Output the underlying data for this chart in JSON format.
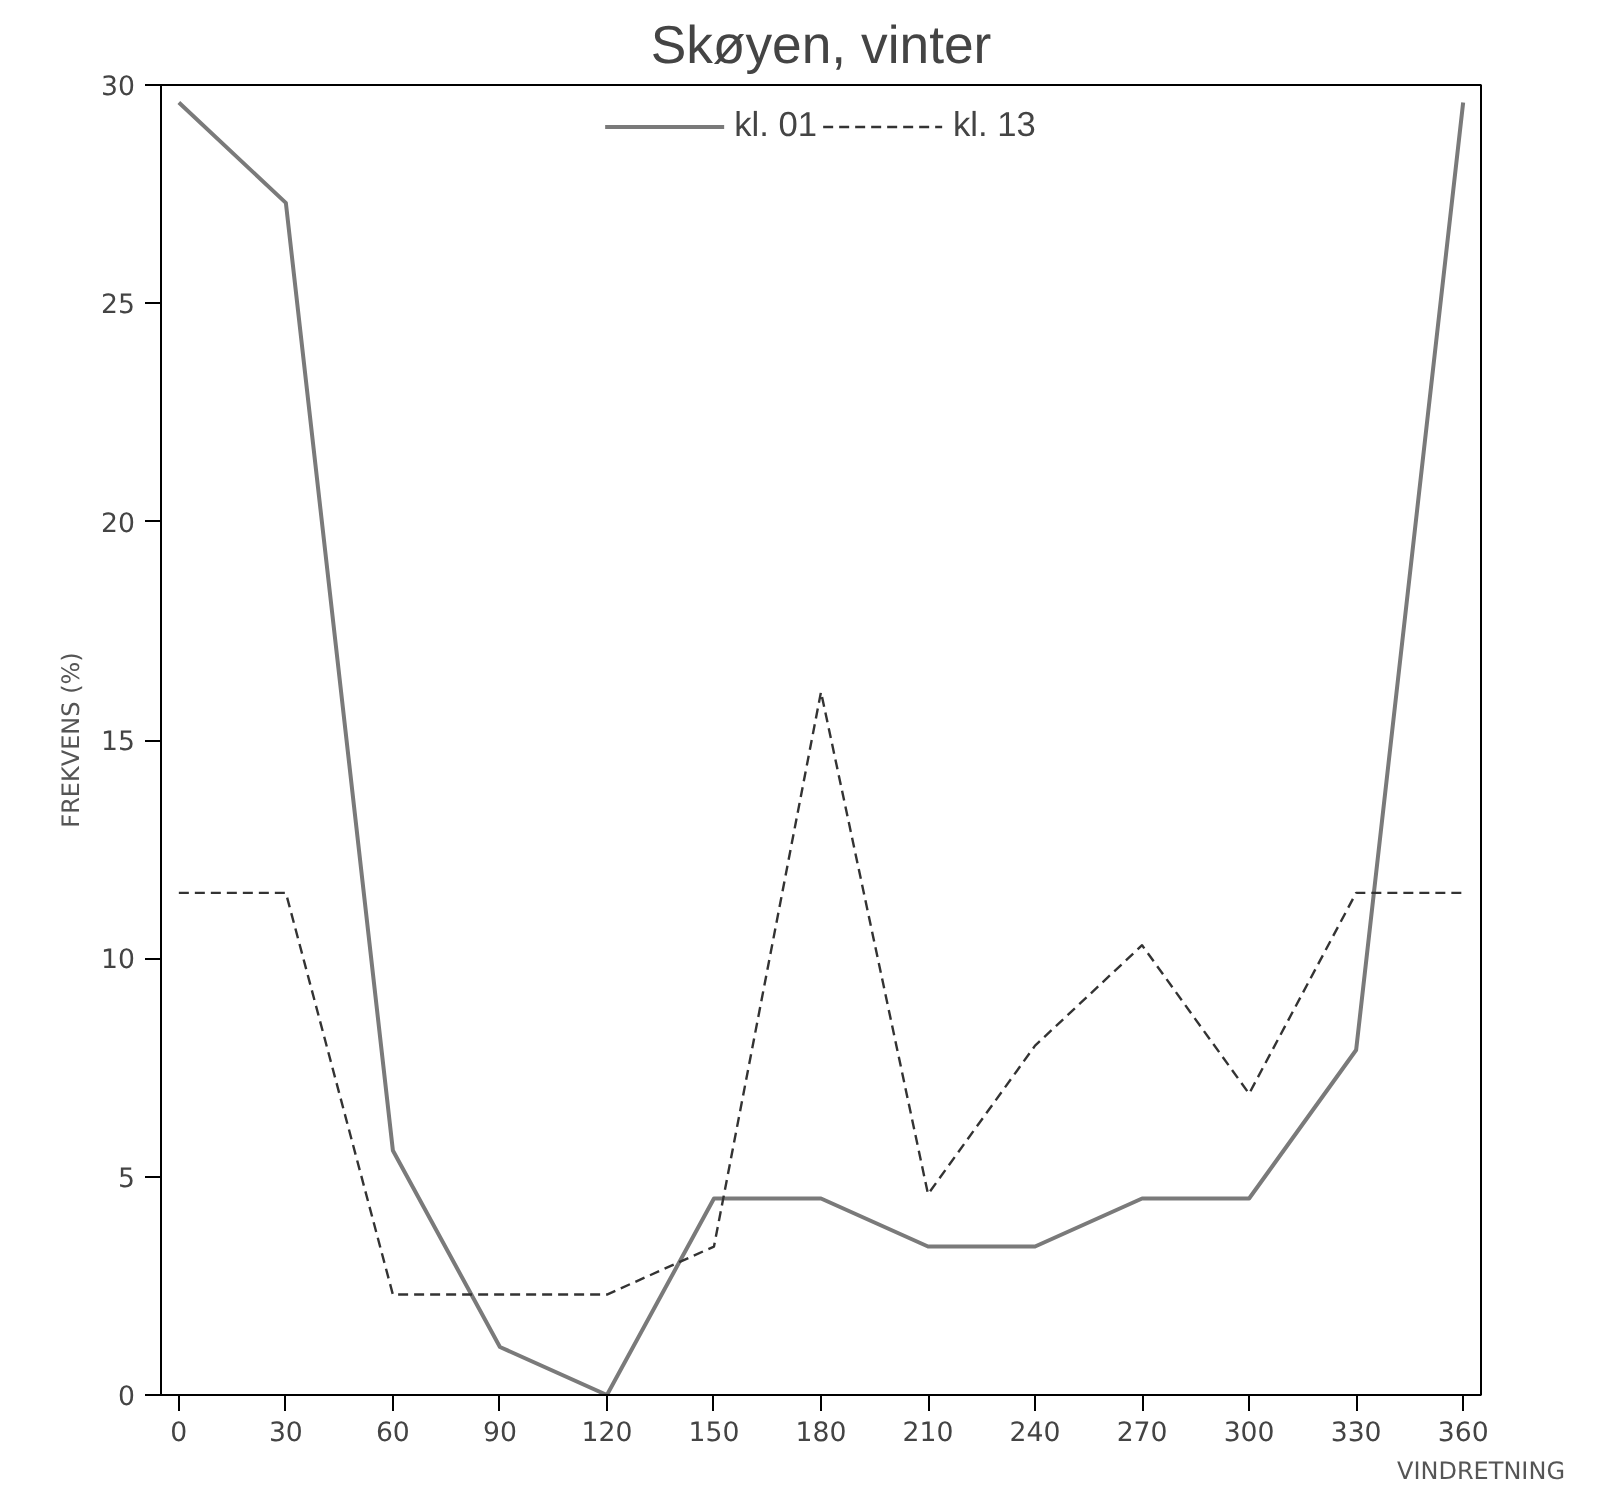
{
  "chart_data": {
    "type": "line",
    "title": "Skøyen, vinter",
    "xlabel": "VINDRETNING",
    "ylabel": "FREKVENS (%)",
    "x": [
      0,
      30,
      60,
      90,
      120,
      150,
      180,
      210,
      240,
      270,
      300,
      330,
      360
    ],
    "series": [
      {
        "name": "kl. 01",
        "color": "#7a7a7a",
        "line_style": "solid",
        "values": [
          29.6,
          27.3,
          5.6,
          1.1,
          0,
          4.5,
          4.5,
          3.4,
          3.4,
          4.5,
          4.5,
          7.9,
          29.6
        ]
      },
      {
        "name": "kl. 13",
        "color": "#333333",
        "line_style": "dashed",
        "values": [
          11.5,
          11.5,
          2.3,
          2.3,
          2.3,
          3.4,
          16.1,
          4.6,
          8.0,
          10.3,
          6.9,
          11.5,
          11.5
        ]
      }
    ],
    "xlim": [
      -5,
      365
    ],
    "ylim": [
      0,
      30
    ],
    "xticks": [
      0,
      30,
      60,
      90,
      120,
      150,
      180,
      210,
      240,
      270,
      300,
      330,
      360
    ],
    "yticks": [
      0,
      5,
      10,
      15,
      20,
      25,
      30
    ],
    "grid": false,
    "legend": "top",
    "marker": "none"
  }
}
